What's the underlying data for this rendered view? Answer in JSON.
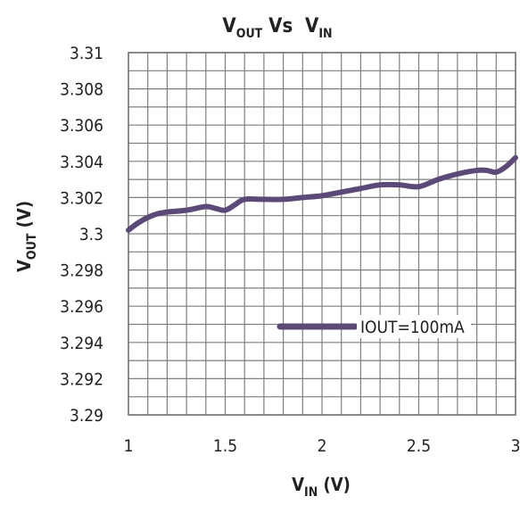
{
  "chart_data": {
    "type": "line",
    "title": {
      "main": "V",
      "sub1": "OUT",
      "mid": " Vs  V",
      "sub2": "IN"
    },
    "xlabel": {
      "main": "V",
      "sub": "IN",
      "rest": " (V)"
    },
    "ylabel": {
      "main": "V",
      "sub": "OUT",
      "rest": " (V)"
    },
    "xlim": [
      1,
      3
    ],
    "ylim": [
      3.29,
      3.31
    ],
    "x_ticks": [
      "1",
      "1.5",
      "2",
      "2.5",
      "3"
    ],
    "y_ticks": [
      "3.31",
      "3.308",
      "3.306",
      "3.304",
      "3.302",
      "3.3",
      "3.298",
      "3.296",
      "3.294",
      "3.292",
      "3.29"
    ],
    "grid": true,
    "legend_position": "center-right",
    "series": [
      {
        "name": "IOUT=100mA",
        "color": "#5b4a78",
        "x": [
          1.0,
          1.05,
          1.1,
          1.15,
          1.2,
          1.3,
          1.4,
          1.45,
          1.5,
          1.55,
          1.6,
          1.7,
          1.8,
          1.9,
          2.0,
          2.1,
          2.2,
          2.3,
          2.4,
          2.5,
          2.6,
          2.7,
          2.8,
          2.85,
          2.9,
          2.95,
          3.0
        ],
        "y": [
          3.3002,
          3.3006,
          3.3009,
          3.3011,
          3.3012,
          3.3013,
          3.3015,
          3.3014,
          3.3013,
          3.3016,
          3.3019,
          3.3019,
          3.3019,
          3.302,
          3.3021,
          3.3023,
          3.3025,
          3.3027,
          3.3027,
          3.3026,
          3.303,
          3.3033,
          3.3035,
          3.3035,
          3.3034,
          3.3037,
          3.3042
        ]
      }
    ]
  }
}
